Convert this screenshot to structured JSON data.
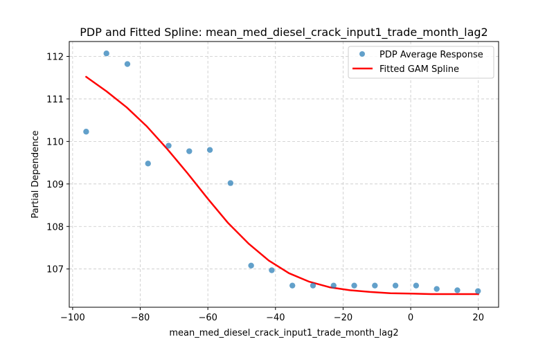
{
  "chart_data": {
    "type": "scatter",
    "title": "PDP and Fitted Spline: mean_med_diesel_crack_input1_trade_month_lag2",
    "xlabel": "mean_med_diesel_crack_input1_trade_month_lag2",
    "ylabel": "Partial Dependence",
    "xlim": [
      -101,
      26
    ],
    "ylim": [
      106.1,
      112.35
    ],
    "xticks": [
      -100,
      -80,
      -60,
      -40,
      -20,
      0,
      20
    ],
    "xtick_labels": [
      "−100",
      "−80",
      "−60",
      "−40",
      "−20",
      "0",
      "20"
    ],
    "yticks": [
      107,
      108,
      109,
      110,
      111,
      112
    ],
    "ytick_labels": [
      "107",
      "108",
      "109",
      "110",
      "111",
      "112"
    ],
    "grid": true,
    "legend_position": "upper right",
    "series": [
      {
        "name": "PDP Average Response",
        "kind": "scatter",
        "color": "#1f77b4",
        "x": [
          -96,
          -90,
          -83.8,
          -77.7,
          -71.6,
          -65.5,
          -59.4,
          -53.3,
          -47.2,
          -41.1,
          -35,
          -28.9,
          -22.8,
          -16.7,
          -10.6,
          -4.5,
          1.6,
          7.7,
          13.8,
          19.9
        ],
        "y": [
          110.23,
          112.07,
          111.82,
          109.48,
          109.9,
          109.77,
          109.8,
          109.02,
          107.08,
          106.97,
          106.61,
          106.61,
          106.61,
          106.61,
          106.61,
          106.61,
          106.61,
          106.53,
          106.5,
          106.48
        ]
      },
      {
        "name": "Fitted GAM Spline",
        "kind": "line",
        "color": "#ff0000",
        "x": [
          -96,
          -90,
          -84,
          -78,
          -72,
          -66,
          -60,
          -54,
          -48,
          -42,
          -36,
          -30,
          -24,
          -18,
          -12,
          -6,
          0,
          6,
          12,
          20
        ],
        "y": [
          111.52,
          111.18,
          110.8,
          110.35,
          109.82,
          109.25,
          108.65,
          108.08,
          107.6,
          107.2,
          106.9,
          106.7,
          106.57,
          106.5,
          106.46,
          106.43,
          106.42,
          106.41,
          106.41,
          106.41
        ]
      }
    ]
  }
}
